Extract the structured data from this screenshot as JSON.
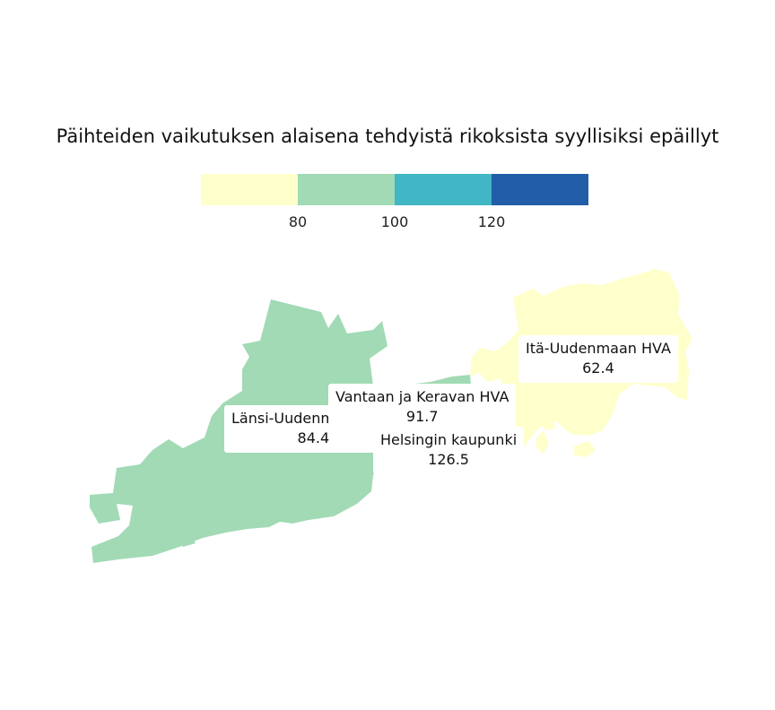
{
  "title": "Päihteiden vaikutuksen alaisena tehdyistä rikoksista syyllisiksi epäillyt",
  "legend": {
    "breaks": [
      "80",
      "100",
      "120"
    ],
    "colors": [
      "#ffffcc",
      "#a1dab4",
      "#41b6c4",
      "#225ea8"
    ]
  },
  "regions": [
    {
      "name": "Länsi-Uudenmaan HVA",
      "value": "84.4",
      "color": "#a1dab4"
    },
    {
      "name": "Vantaan ja Keravan HVA",
      "value": "91.7",
      "color": "#a1dab4"
    },
    {
      "name": "Helsingin kaupunki",
      "value": "126.5",
      "color": "#225ea8"
    },
    {
      "name": "Itä-Uudenmaan HVA",
      "value": "62.4",
      "color": "#ffffcc"
    }
  ],
  "chart_data": {
    "type": "choropleth",
    "title": "Päihteiden vaikutuksen alaisena tehdyistä rikoksista syyllisiksi epäillyt",
    "categories": [
      "Länsi-Uudenmaan HVA",
      "Vantaan ja Keravan HVA",
      "Helsingin kaupunki",
      "Itä-Uudenmaan HVA"
    ],
    "values": [
      84.4,
      91.7,
      126.5,
      62.4
    ],
    "legend_breaks": [
      80,
      100,
      120
    ]
  }
}
